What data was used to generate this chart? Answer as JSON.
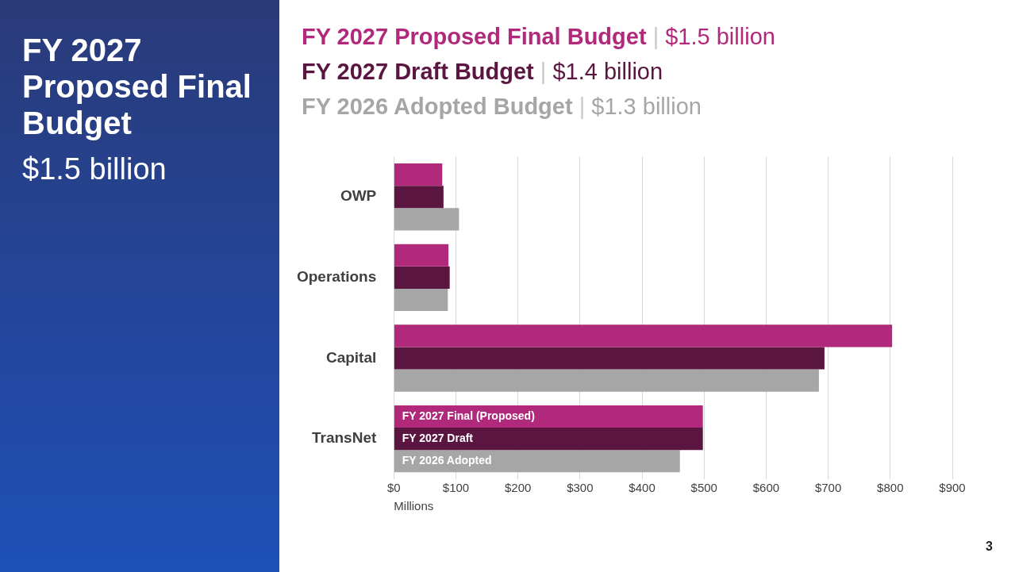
{
  "chart_data": {
    "type": "bar",
    "orientation": "horizontal",
    "title": "FY 2027 Proposed Final Budget",
    "subtitle": "$1.5 billion",
    "annotations": [
      "FY 2027 Proposed Final Budget | $1.5 billion",
      "FY 2027 Draft Budget | $1.4 billion",
      "FY 2026 Adopted Budget | $1.3 billion",
      "3"
    ],
    "categories": [
      "OWP",
      "Operations",
      "Capital",
      "TransNet"
    ],
    "series": [
      {
        "name": "FY 2027 Final (Proposed)",
        "color": "#b0297a",
        "values": [
          78,
          88,
          803,
          498
        ]
      },
      {
        "name": "FY 2027 Draft",
        "color": "#5a1540",
        "values": [
          80,
          90,
          694,
          498
        ]
      },
      {
        "name": "FY 2026 Adopted",
        "color": "#a6a6a6",
        "values": [
          105,
          87,
          685,
          461
        ]
      }
    ],
    "xlabel": "Millions",
    "xlim": [
      0,
      900
    ],
    "xticks": [
      {
        "value": 0,
        "label": "$0"
      },
      {
        "value": 100,
        "label": "$100"
      },
      {
        "value": 200,
        "label": "$200"
      },
      {
        "value": 300,
        "label": "$300"
      },
      {
        "value": 400,
        "label": "$400"
      },
      {
        "value": 500,
        "label": "$500"
      },
      {
        "value": 600,
        "label": "$600"
      },
      {
        "value": 700,
        "label": "$700"
      },
      {
        "value": 800,
        "label": "$800"
      },
      {
        "value": 900,
        "label": "$900"
      }
    ],
    "grid": "x",
    "legend": false
  }
}
